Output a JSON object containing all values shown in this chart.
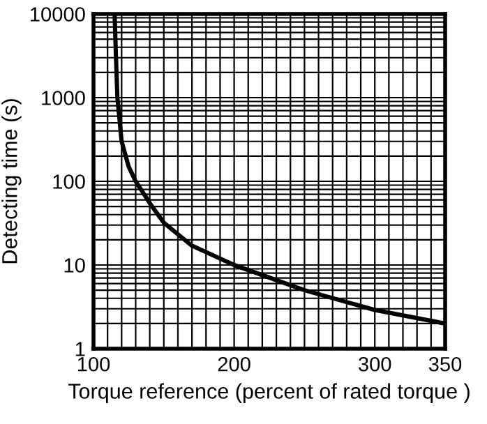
{
  "chart_data": {
    "type": "line",
    "xlabel": "Torque reference (percent of rated torque )",
    "ylabel": "Detecting time (s)",
    "x": [
      115,
      116,
      117,
      120,
      125,
      130,
      140,
      150,
      170,
      200,
      250,
      300,
      350
    ],
    "series": [
      {
        "color": "#000000",
        "values": [
          10000,
          3000,
          1000,
          300,
          150,
          100,
          55,
          32,
          17,
          10,
          5,
          2.9,
          2
        ]
      }
    ],
    "log": "y",
    "xlim": [
      100,
      350
    ],
    "ylim": [
      1,
      10000
    ],
    "xticks": [
      100,
      {
        "value": 110,
        "label": null
      },
      {
        "value": 120,
        "label": null
      },
      {
        "value": 130,
        "label": null
      },
      {
        "value": 140,
        "label": null
      },
      {
        "value": 150,
        "label": null
      },
      {
        "value": 160,
        "label": null
      },
      {
        "value": 170,
        "label": null
      },
      {
        "value": 180,
        "label": null
      },
      {
        "value": 190,
        "label": null
      },
      200,
      {
        "value": 210,
        "label": null
      },
      {
        "value": 220,
        "label": null
      },
      {
        "value": 230,
        "label": null
      },
      {
        "value": 240,
        "label": null
      },
      {
        "value": 250,
        "label": null
      },
      {
        "value": 260,
        "label": null
      },
      {
        "value": 270,
        "label": null
      },
      {
        "value": 280,
        "label": null
      },
      {
        "value": 290,
        "label": null
      },
      300,
      {
        "value": 310,
        "label": null
      },
      {
        "value": 320,
        "label": null
      },
      {
        "value": 330,
        "label": null
      },
      {
        "value": 340,
        "label": null
      },
      350
    ],
    "yticks": [
      1,
      {
        "value": 2,
        "label": null
      },
      {
        "value": 3,
        "label": null
      },
      {
        "value": 4,
        "label": null
      },
      {
        "value": 5,
        "label": null
      },
      {
        "value": 6,
        "label": null
      },
      {
        "value": 7,
        "label": null
      },
      {
        "value": 8,
        "label": null
      },
      {
        "value": 9,
        "label": null
      },
      10,
      {
        "value": 20,
        "label": null
      },
      {
        "value": 30,
        "label": null
      },
      {
        "value": 40,
        "label": null
      },
      {
        "value": 50,
        "label": null
      },
      {
        "value": 60,
        "label": null
      },
      {
        "value": 70,
        "label": null
      },
      {
        "value": 80,
        "label": null
      },
      {
        "value": 90,
        "label": null
      },
      100,
      {
        "value": 200,
        "label": null
      },
      {
        "value": 300,
        "label": null
      },
      {
        "value": 400,
        "label": null
      },
      {
        "value": 500,
        "label": null
      },
      {
        "value": 600,
        "label": null
      },
      {
        "value": 700,
        "label": null
      },
      {
        "value": 800,
        "label": null
      },
      {
        "value": 900,
        "label": null
      },
      1000,
      {
        "value": 2000,
        "label": null
      },
      {
        "value": 3000,
        "label": null
      },
      {
        "value": 4000,
        "label": null
      },
      {
        "value": 5000,
        "label": null
      },
      {
        "value": 6000,
        "label": null
      },
      {
        "value": 7000,
        "label": null
      },
      {
        "value": 8000,
        "label": null
      },
      {
        "value": 9000,
        "label": null
      },
      10000
    ],
    "grid": true,
    "line_style": "solid"
  }
}
